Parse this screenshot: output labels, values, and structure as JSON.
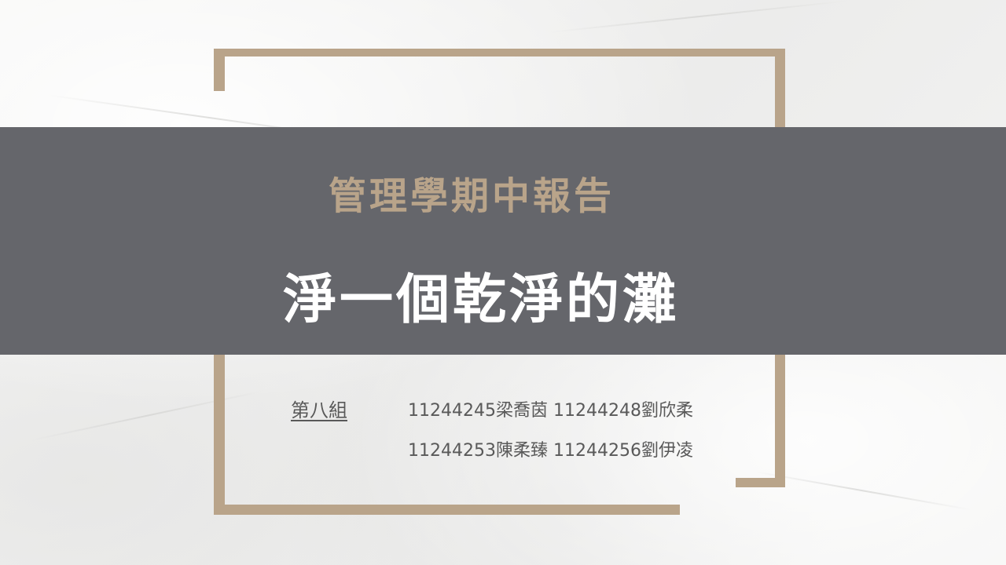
{
  "slide": {
    "subtitle": "管理學期中報告",
    "title": "淨一個乾淨的灘",
    "group_label": "第八組",
    "members_line_1": "11244245梁喬茵 11244248劉欣柔",
    "members_line_2": "11244253陳柔臻 11244256劉伊凌"
  },
  "colors": {
    "frame": "#b9a48a",
    "band": "#65666b",
    "subtitle_text": "#b9a48a",
    "title_text": "#ffffff",
    "body_text": "#595959",
    "background": "#f2f2f1"
  }
}
